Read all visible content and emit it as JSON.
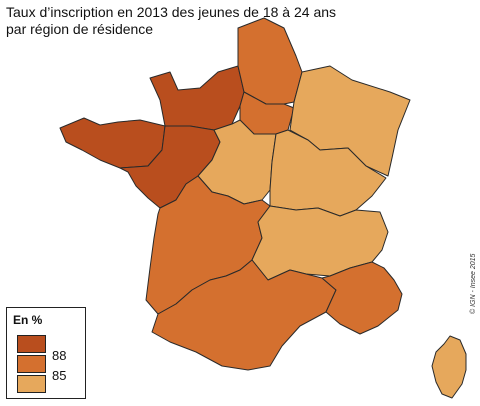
{
  "title": "Taux d’inscription en 2013 des jeunes de 18 à 24 ans\npar région de résidence",
  "legend": {
    "title": "En %",
    "items": [
      {
        "label": "",
        "color": "#b94e1e"
      },
      {
        "label": "88",
        "color": "#d4702f"
      },
      {
        "label": "85",
        "color": "#e6a85c"
      }
    ]
  },
  "colors": {
    "dark": "#b94e1e",
    "mid": "#d4702f",
    "light": "#e6a85c",
    "border": "#2a2a2a"
  },
  "regions": [
    {
      "name": "bretagne",
      "cls": "dark"
    },
    {
      "name": "normandie",
      "cls": "dark"
    },
    {
      "name": "pays-de-la-loire",
      "cls": "dark"
    },
    {
      "name": "hauts-de-france",
      "cls": "mid"
    },
    {
      "name": "ile-de-france",
      "cls": "mid"
    },
    {
      "name": "grand-est",
      "cls": "light"
    },
    {
      "name": "centre-val-de-loire",
      "cls": "light"
    },
    {
      "name": "bourgogne-franche-comte",
      "cls": "light"
    },
    {
      "name": "nouvelle-aquitaine",
      "cls": "mid"
    },
    {
      "name": "auvergne-rhone-alpes",
      "cls": "light"
    },
    {
      "name": "occitanie",
      "cls": "mid"
    },
    {
      "name": "paca",
      "cls": "mid"
    },
    {
      "name": "corse",
      "cls": "light"
    }
  ],
  "copyright": "© IGN - Insee 2015"
}
